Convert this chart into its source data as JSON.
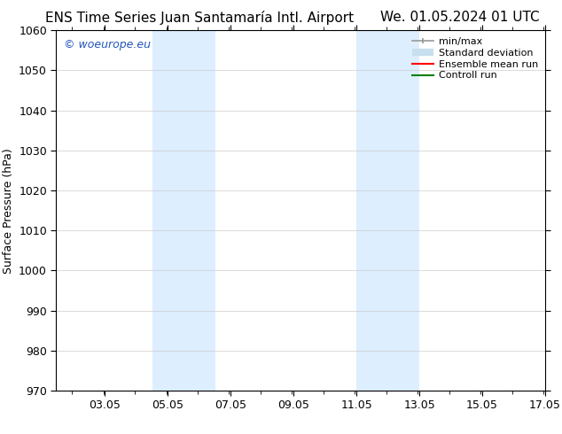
{
  "title_left": "ENS Time Series Juan Santamaría Intl. Airport",
  "title_right": "We. 01.05.2024 01 UTC",
  "ylabel": "Surface Pressure (hPa)",
  "ylim": [
    970,
    1060
  ],
  "yticks": [
    970,
    980,
    990,
    1000,
    1010,
    1020,
    1030,
    1040,
    1050,
    1060
  ],
  "xlim_start": 1.5,
  "xlim_end": 17.05,
  "xtick_labels": [
    "03.05",
    "05.05",
    "07.05",
    "09.05",
    "11.05",
    "13.05",
    "15.05",
    "17.05"
  ],
  "xtick_positions": [
    3.05,
    5.05,
    7.05,
    9.05,
    11.05,
    13.05,
    15.05,
    17.05
  ],
  "shaded_bands": [
    {
      "x_start": 4.55,
      "x_end": 6.55
    },
    {
      "x_start": 11.05,
      "x_end": 13.05
    }
  ],
  "band_color": "#ddeeff",
  "watermark_text": "© woeurope.eu",
  "watermark_color": "#2255bb",
  "bg_color": "#ffffff",
  "grid_color": "#cccccc",
  "title_fontsize": 11,
  "axis_fontsize": 9,
  "legend_fontsize": 8,
  "watermark_fontsize": 9
}
